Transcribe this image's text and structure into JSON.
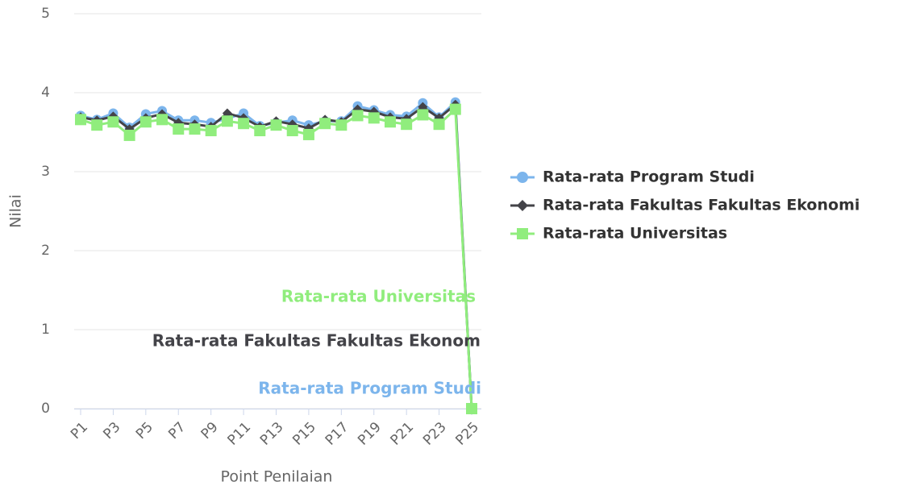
{
  "chart_data": {
    "type": "line",
    "categories": [
      "P1",
      null,
      "P3",
      null,
      "P5",
      null,
      "P7",
      null,
      "P9",
      null,
      "P11",
      null,
      "P13",
      null,
      "P15",
      null,
      "P17",
      null,
      "P19",
      null,
      "P21",
      null,
      "P23",
      null,
      "P25"
    ],
    "series": [
      {
        "name": "Rata-rata Program Studi",
        "color": "#7cb5ec",
        "marker": "circle",
        "values": [
          3.71,
          3.66,
          3.74,
          3.56,
          3.73,
          3.77,
          3.65,
          3.65,
          3.62,
          3.67,
          3.74,
          3.58,
          3.62,
          3.65,
          3.59,
          3.64,
          3.64,
          3.83,
          3.78,
          3.72,
          3.7,
          3.87,
          3.69,
          3.88,
          0
        ]
      },
      {
        "name": "Rata-rata Fakultas Fakultas Ekonomi",
        "color": "#434348",
        "marker": "diamond",
        "values": [
          3.69,
          3.65,
          3.7,
          3.54,
          3.68,
          3.73,
          3.62,
          3.6,
          3.57,
          3.74,
          3.68,
          3.57,
          3.64,
          3.6,
          3.55,
          3.66,
          3.63,
          3.79,
          3.76,
          3.69,
          3.67,
          3.82,
          3.68,
          3.85,
          0
        ]
      },
      {
        "name": "Rata-rata Universitas",
        "color": "#90ed7d",
        "marker": "square",
        "values": [
          3.66,
          3.59,
          3.63,
          3.46,
          3.63,
          3.66,
          3.54,
          3.54,
          3.52,
          3.64,
          3.61,
          3.52,
          3.59,
          3.52,
          3.47,
          3.61,
          3.59,
          3.71,
          3.68,
          3.63,
          3.6,
          3.72,
          3.6,
          3.79,
          0
        ]
      }
    ],
    "annotations": [
      {
        "text": "Rata-rata Universitas",
        "color": "#90ed7d"
      },
      {
        "text": "Rata-rata Fakultas Fakultas Ekonom",
        "color": "#434348"
      },
      {
        "text": "Rata-rata Program Studi",
        "color": "#7cb5ec"
      }
    ],
    "ylim": [
      0,
      5
    ],
    "yticks": [
      0,
      1,
      2,
      3,
      4,
      5
    ],
    "grid": true,
    "y_label": "Nilai",
    "x_label": "Point Penilaian",
    "legend": "right"
  }
}
